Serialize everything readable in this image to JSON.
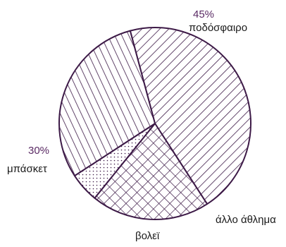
{
  "chart_data": {
    "type": "pie",
    "title": "",
    "slices": [
      {
        "label": "ποδόσφαιρο",
        "value": 45,
        "value_label": "45%",
        "pattern": "diagonal-right"
      },
      {
        "label": "άλλο άθλημα",
        "value": 20,
        "pattern": "crosshatch"
      },
      {
        "label": "βολεϊ",
        "value": 5,
        "pattern": "dots"
      },
      {
        "label": "μπάσκετ",
        "value": 30,
        "value_label": "30%",
        "pattern": "diagonal-left"
      }
    ],
    "start_angle_deg": -105,
    "direction": "clockwise",
    "colors": {
      "stroke": "#3d1a47",
      "pattern": "#3d1a47",
      "percent_text": "#5a2a64",
      "label_text": "#1a1a1a",
      "background": "#ffffff"
    },
    "legend": "none"
  }
}
